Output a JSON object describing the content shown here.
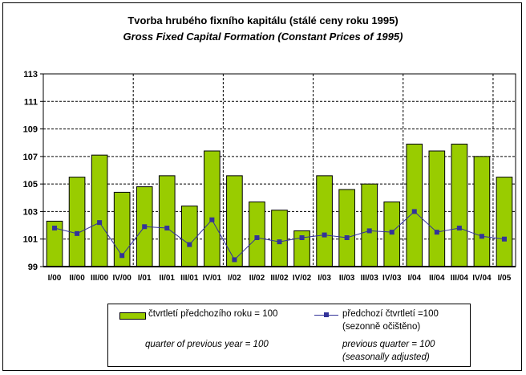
{
  "chart_data": {
    "type": "bar",
    "title": "Tvorba hrubého fixního kapitálu (stálé ceny roku 1995)",
    "subtitle": "Gross Fixed Capital Formation (Constant Prices of 1995)",
    "xlabel": "",
    "ylabel": "",
    "ylim": [
      99,
      113
    ],
    "yticks": [
      "99",
      "101",
      "103",
      "105",
      "107",
      "109",
      "111",
      "113"
    ],
    "grid": true,
    "legend_placement": "bottom",
    "categories": [
      "I/00",
      "II/00",
      "III/00",
      "IV/00",
      "I/01",
      "II/01",
      "III/01",
      "IV/01",
      "I/02",
      "II/02",
      "III/02",
      "IV/02",
      "I/03",
      "II/03",
      "III/03",
      "IV/03",
      "I/04",
      "II/04",
      "III/04",
      "IV/04",
      "I/05"
    ],
    "series": [
      {
        "name": "čtvrtletí předchozího roku = 100",
        "name_en": "quarter of previous year = 100",
        "type": "bar",
        "color": "#99cc00",
        "values": [
          102.3,
          105.5,
          107.1,
          104.4,
          104.8,
          105.6,
          103.4,
          107.4,
          105.6,
          103.7,
          103.1,
          101.6,
          105.6,
          104.6,
          105.0,
          103.7,
          107.9,
          107.4,
          107.9,
          107.0,
          105.5
        ]
      },
      {
        "name": "předchozí čtvrtletí =100",
        "name2": "(sezonně očištěno)",
        "name_en": "previous quarter = 100",
        "name_en2": "(seasonally adjusted)",
        "type": "line",
        "color": "#333399",
        "values": [
          101.8,
          101.4,
          102.2,
          99.8,
          101.9,
          101.8,
          100.6,
          102.4,
          99.5,
          101.1,
          100.8,
          101.1,
          101.3,
          101.1,
          101.6,
          101.5,
          103.0,
          101.5,
          101.8,
          101.2,
          101.0
        ]
      }
    ]
  }
}
